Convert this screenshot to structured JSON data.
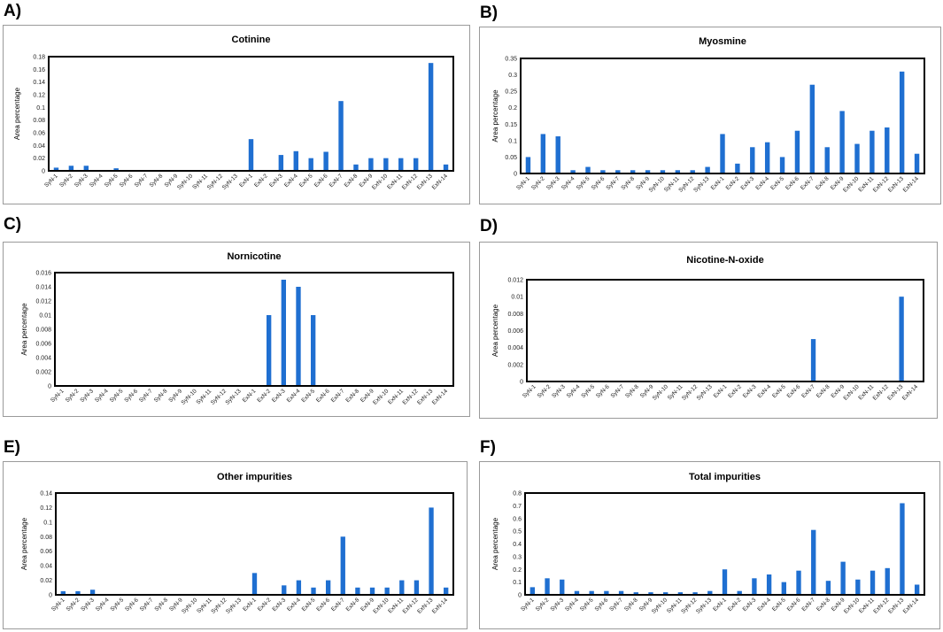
{
  "panels": [
    "A)",
    "B)",
    "C)",
    "D)",
    "E)",
    "F)"
  ],
  "colors": {
    "bar": "#1f6fd1",
    "frame": "#000000",
    "panel_border": "#9a9a9a"
  },
  "chart_data": [
    {
      "type": "bar",
      "title": "Cotinine",
      "ylabel": "Area percentage",
      "xlabel": "",
      "ylim": [
        0,
        0.18
      ],
      "yticks": [
        "0",
        "0.02",
        "0.04",
        "0.06",
        "0.08",
        "0.1",
        "0.12",
        "0.14",
        "0.16",
        "0.18"
      ],
      "categories": [
        "SyN-1",
        "SyN-2",
        "SyN-3",
        "SyN-4",
        "SyN-5",
        "SyN-6",
        "SyN-7",
        "SyN-8",
        "SyN-9",
        "SyN-10",
        "SyN-11",
        "SyN-12",
        "SyN-13",
        "ExN-1",
        "ExN-2",
        "ExN-3",
        "ExN-4",
        "ExN-5",
        "ExN-6",
        "ExN-7",
        "ExN-8",
        "ExN-9",
        "ExN-10",
        "ExN-11",
        "ExN-12",
        "ExN-13",
        "ExN-14"
      ],
      "values": [
        0.005,
        0.008,
        0.008,
        0,
        0.004,
        0,
        0,
        0,
        0,
        0,
        0,
        0,
        0,
        0.05,
        0,
        0.025,
        0.031,
        0.02,
        0.03,
        0.11,
        0.01,
        0.02,
        0.02,
        0.02,
        0.02,
        0.17,
        0.01
      ]
    },
    {
      "type": "bar",
      "title": "Myosmine",
      "ylabel": "Area percentage",
      "xlabel": "",
      "ylim": [
        0,
        0.35
      ],
      "yticks": [
        "0",
        "0.05",
        "0.1",
        "0.15",
        "0.2",
        "0.25",
        "0.3",
        "0.35"
      ],
      "categories": [
        "SyN-1",
        "SyN-2",
        "SyN-3",
        "SyN-4",
        "SyN-5",
        "SyN-6",
        "SyN-7",
        "SyN-8",
        "SyN-9",
        "SyN-10",
        "SyN-11",
        "SyN-12",
        "SyN-13",
        "ExN-1",
        "ExN-2",
        "ExN-3",
        "ExN-4",
        "ExN-5",
        "ExN-6",
        "ExN-7",
        "ExN-8",
        "ExN-9",
        "ExN-10",
        "ExN-11",
        "ExN-12",
        "ExN-13",
        "ExN-14"
      ],
      "values": [
        0.05,
        0.12,
        0.113,
        0.01,
        0.02,
        0.01,
        0.01,
        0.01,
        0.01,
        0.01,
        0.01,
        0.01,
        0.02,
        0.12,
        0.03,
        0.08,
        0.095,
        0.05,
        0.13,
        0.27,
        0.08,
        0.19,
        0.09,
        0.13,
        0.14,
        0.31,
        0.06
      ]
    },
    {
      "type": "bar",
      "title": "Nornicotine",
      "ylabel": "Area percentage",
      "xlabel": "",
      "ylim": [
        0,
        0.016
      ],
      "yticks": [
        "0",
        "0.002",
        "0.004",
        "0.006",
        "0.008",
        "0.01",
        "0.012",
        "0.014",
        "0.016"
      ],
      "categories": [
        "SyN-1",
        "SyN-2",
        "SyN-3",
        "SyN-4",
        "SyN-5",
        "SyN-6",
        "SyN-7",
        "SyN-8",
        "SyN-9",
        "SyN-10",
        "SyN-11",
        "SyN-12",
        "SyN-13",
        "ExN-1",
        "ExN-2",
        "ExN-3",
        "ExN-4",
        "ExN-5",
        "ExN-6",
        "ExN-7",
        "ExN-8",
        "ExN-9",
        "ExN-10",
        "ExN-11",
        "ExN-12",
        "ExN-13",
        "ExN-14"
      ],
      "values": [
        0,
        0,
        0,
        0,
        0,
        0,
        0,
        0,
        0,
        0,
        0,
        0,
        0,
        0,
        0.01,
        0.015,
        0.014,
        0.01,
        0,
        0,
        0,
        0,
        0,
        0,
        0,
        0,
        0
      ]
    },
    {
      "type": "bar",
      "title": "Nicotine-N-oxide",
      "ylabel": "Area percentage",
      "xlabel": "",
      "ylim": [
        0,
        0.012
      ],
      "yticks": [
        "0",
        "0.002",
        "0.004",
        "0.006",
        "0.008",
        "0.01",
        "0.012"
      ],
      "categories": [
        "SyN-1",
        "SyN-2",
        "SyN-3",
        "SyN-4",
        "SyN-5",
        "SyN-6",
        "SyN-7",
        "SyN-8",
        "SyN-9",
        "SyN-10",
        "SyN-11",
        "SyN-12",
        "SyN-13",
        "ExN-1",
        "ExN-2",
        "ExN-3",
        "ExN-4",
        "ExN-5",
        "ExN-6",
        "ExN-7",
        "ExN-8",
        "ExN-9",
        "ExN-10",
        "ExN-11",
        "ExN-12",
        "ExN-13",
        "ExN-14"
      ],
      "values": [
        0,
        0,
        0,
        0,
        0,
        0,
        0,
        0,
        0,
        0,
        0,
        0,
        0,
        0,
        0,
        0,
        0,
        0,
        0,
        0.005,
        0,
        0,
        0,
        0,
        0,
        0.01,
        0
      ]
    },
    {
      "type": "bar",
      "title": "Other impurities",
      "ylabel": "Area percentage",
      "xlabel": "",
      "ylim": [
        0,
        0.14
      ],
      "yticks": [
        "0",
        "0.02",
        "0.04",
        "0.06",
        "0.08",
        "0.1",
        "0.12",
        "0.14"
      ],
      "categories": [
        "SyN-1",
        "SyN-2",
        "SyN-3",
        "SyN-4",
        "SyN-5",
        "SyN-6",
        "SyN-7",
        "SyN-8",
        "SyN-9",
        "SyN-10",
        "SyN-11",
        "SyN-12",
        "SyN-13",
        "ExN-1",
        "ExN-2",
        "ExN-3",
        "ExN-4",
        "ExN-5",
        "ExN-6",
        "ExN-7",
        "ExN-8",
        "ExN-9",
        "ExN-10",
        "ExN-11",
        "ExN-12",
        "ExN-13",
        "ExN-14"
      ],
      "values": [
        0.005,
        0.005,
        0.007,
        0,
        0,
        0,
        0,
        0,
        0,
        0,
        0,
        0,
        0,
        0.03,
        0,
        0.013,
        0.02,
        0.01,
        0.02,
        0.08,
        0.01,
        0.01,
        0.01,
        0.02,
        0.02,
        0.12,
        0.01
      ]
    },
    {
      "type": "bar",
      "title": "Total impurities",
      "ylabel": "Area percentage",
      "xlabel": "",
      "ylim": [
        0,
        0.8
      ],
      "yticks": [
        "0",
        "0.1",
        "0.2",
        "0.3",
        "0.4",
        "0.5",
        "0.6",
        "0.7",
        "0.8"
      ],
      "categories": [
        "SyN-1",
        "SyN-2",
        "SyN-3",
        "SyN-4",
        "SyN-5",
        "SyN-6",
        "SyN-7",
        "SyN-8",
        "SyN-9",
        "SyN-10",
        "SyN-11",
        "SyN-12",
        "SyN-13",
        "ExN-1",
        "ExN-2",
        "ExN-3",
        "ExN-4",
        "ExN-5",
        "ExN-6",
        "ExN-7",
        "ExN-8",
        "ExN-9",
        "ExN-10",
        "ExN-11",
        "ExN-12",
        "ExN-13",
        "ExN-14"
      ],
      "values": [
        0.06,
        0.13,
        0.12,
        0.03,
        0.03,
        0.03,
        0.03,
        0.02,
        0.02,
        0.02,
        0.02,
        0.02,
        0.03,
        0.2,
        0.03,
        0.13,
        0.16,
        0.1,
        0.19,
        0.51,
        0.11,
        0.26,
        0.12,
        0.19,
        0.21,
        0.72,
        0.08
      ]
    }
  ]
}
